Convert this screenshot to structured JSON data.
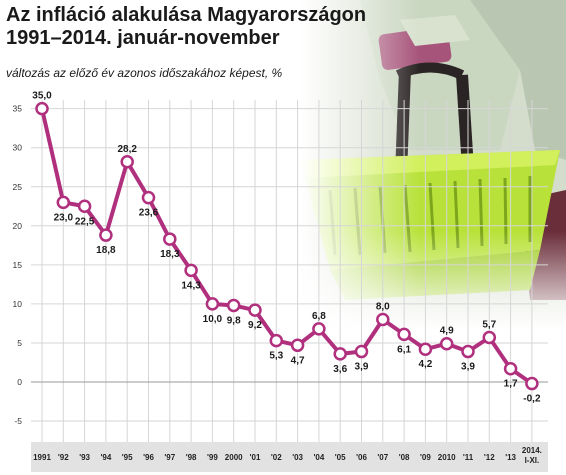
{
  "title_line1": "Az infláció alakulása Magyarországon",
  "title_line2": "1991–2014. január-november",
  "subtitle": "változás az előző év azonos időszakához képest, %",
  "colors": {
    "line": "#b0307e",
    "grid": "#d6d6d6",
    "xband": "#e2e2e2",
    "photo_green": "#b8e23a",
    "photo_bg": "#cfd8c6"
  },
  "photo": {
    "description_icon": "shopping-basket-icon"
  },
  "chart_data": {
    "type": "line",
    "title": "Az infláció alakulása Magyarországon 1991–2014. január-november",
    "subtitle": "változás az előző év azonos időszakához képest, %",
    "categories": [
      "1991",
      "'92",
      "'93",
      "'94",
      "'95",
      "'96",
      "'97",
      "'98",
      "'99",
      "2000",
      "'01",
      "'02",
      "'03",
      "'04",
      "'05",
      "'06",
      "'07",
      "'08",
      "'09",
      "2010",
      "'11",
      "'12",
      "'13",
      "2014. I-XI."
    ],
    "values": [
      35.0,
      23.0,
      22.5,
      18.8,
      28.2,
      23.6,
      18.3,
      14.3,
      10.0,
      9.8,
      9.2,
      5.3,
      4.7,
      6.8,
      3.6,
      3.9,
      8.0,
      6.1,
      4.2,
      4.9,
      3.9,
      5.7,
      1.7,
      -0.2
    ],
    "labels": [
      "35,0",
      "23,0",
      "22,5",
      "18,8",
      "28,2",
      "23,6",
      "18,3",
      "14,3",
      "10,0",
      "9,8",
      "9,2",
      "5,3",
      "4,7",
      "6,8",
      "3,6",
      "3,9",
      "8,0",
      "6,1",
      "4,2",
      "4,9",
      "3,9",
      "5,7",
      "1,7",
      "-0,2"
    ],
    "yticks": [
      -5,
      0,
      5,
      10,
      15,
      20,
      25,
      30,
      35
    ],
    "ylim": [
      -10,
      39
    ],
    "grid": true,
    "legend": "none"
  }
}
